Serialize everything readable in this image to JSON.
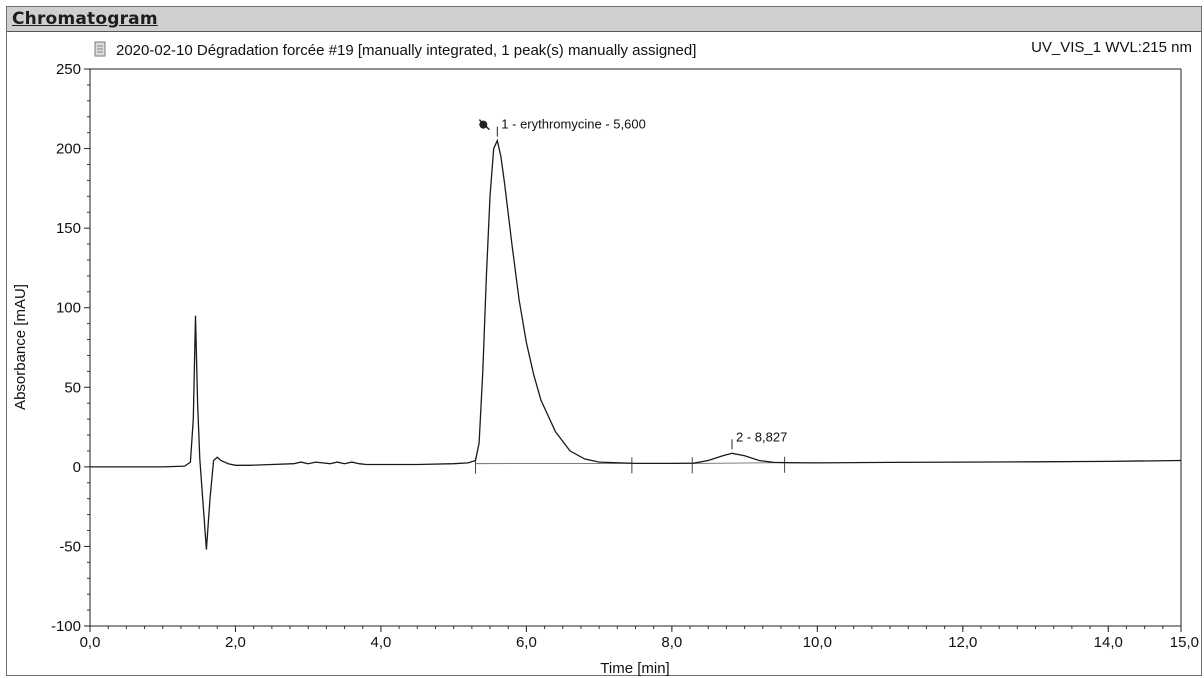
{
  "panel": {
    "title": "Chromatogram"
  },
  "chart_data": {
    "type": "line",
    "title": "2020-02-10 Dégradation forcée #19 [manually integrated, 1 peak(s) manually assigned]",
    "channel": "UV_VIS_1 WVL:215 nm",
    "xlabel": "Time [min]",
    "ylabel": "Absorbance [mAU]",
    "xlim": [
      0,
      15
    ],
    "ylim": [
      -100,
      250
    ],
    "x_ticks": [
      "0,0",
      "2,0",
      "4,0",
      "6,0",
      "8,0",
      "10,0",
      "12,0",
      "14,0",
      "15,0"
    ],
    "y_ticks": [
      "-100",
      "-50",
      "0",
      "50",
      "100",
      "150",
      "200",
      "250"
    ],
    "series": [
      {
        "x": [
          0.0,
          0.5,
          1.0,
          1.3,
          1.38,
          1.42,
          1.45,
          1.48,
          1.51,
          1.55,
          1.6,
          1.65,
          1.7,
          1.75,
          1.8,
          1.9,
          2.0,
          2.2,
          2.5,
          2.8,
          2.9,
          3.0,
          3.1,
          3.2,
          3.3,
          3.4,
          3.5,
          3.6,
          3.7,
          3.8,
          4.0,
          4.5,
          5.0,
          5.2,
          5.3,
          5.35,
          5.4,
          5.45,
          5.5,
          5.55,
          5.6,
          5.65,
          5.7,
          5.8,
          5.9,
          6.0,
          6.1,
          6.2,
          6.4,
          6.6,
          6.8,
          7.0,
          7.5,
          8.0,
          8.3,
          8.5,
          8.7,
          8.827,
          9.0,
          9.2,
          9.4,
          9.6,
          10.0,
          11.0,
          12.0,
          13.0,
          14.0,
          15.0
        ],
        "y": [
          0,
          0,
          0,
          0.5,
          3,
          30,
          95,
          40,
          5,
          -20,
          -52,
          -20,
          4,
          6,
          4,
          2,
          1,
          1,
          1.5,
          2,
          3,
          2,
          3,
          2.5,
          2,
          3,
          2,
          3,
          2,
          1.5,
          1.5,
          1.5,
          2,
          2.5,
          4,
          15,
          60,
          120,
          170,
          200,
          205,
          195,
          178,
          140,
          105,
          78,
          58,
          42,
          22,
          10,
          5,
          3,
          2.2,
          2.2,
          2.3,
          4,
          7,
          8.5,
          7,
          4,
          2.8,
          2.6,
          2.5,
          2.8,
          3,
          3.2,
          3.4,
          4
        ]
      }
    ],
    "peaks": [
      {
        "label": "1 - erythromycine - 5,600",
        "x": 5.6,
        "y": 205
      },
      {
        "label": "2 - 8,827",
        "x": 8.827,
        "y": 8.5
      }
    ],
    "baseline_markers": [
      {
        "x": 5.3,
        "y": 2
      },
      {
        "x": 7.45,
        "y": 2.2
      },
      {
        "x": 8.28,
        "y": 2.2
      },
      {
        "x": 9.55,
        "y": 2.6
      }
    ],
    "grid": false
  },
  "colors": {
    "trace": "#1a1a1a",
    "axis": "#222222",
    "header": "#cfcfcf"
  },
  "icons": {
    "document": "document-icon",
    "peak_marker": "peak-marker-icon"
  }
}
